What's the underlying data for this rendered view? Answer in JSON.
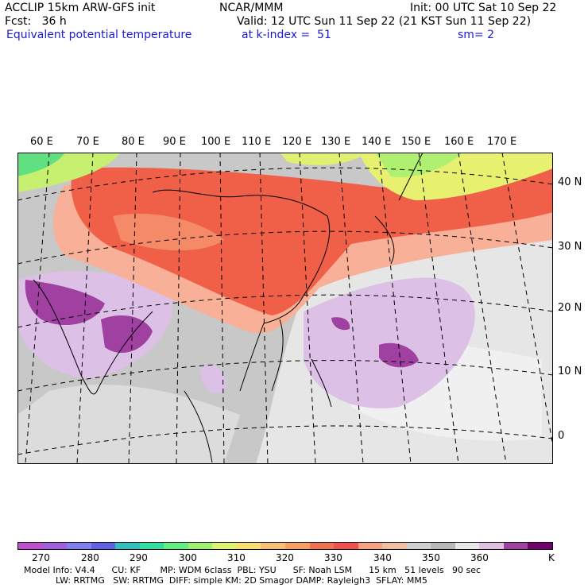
{
  "header": {
    "line1_left": "ACCLIP 15km ARW-GFS init",
    "line1_mid": "NCAR/MMM",
    "line1_right": "Init: 00 UTC Sat 10 Sep 22",
    "line2_left": "Fcst:   36 h",
    "line2_right": "Valid: 12 UTC Sun 11 Sep 22 (21 KST Sun 11 Sep 22)",
    "line3_left": "Equivalent potential temperature",
    "line3_mid": "at k-index =  51",
    "line3_right": "sm= 2"
  },
  "map": {
    "lon_labels": [
      "60 E",
      "70 E",
      "80 E",
      "90 E",
      "100 E",
      "110 E",
      "120 E",
      "130 E",
      "140 E",
      "150 E",
      "160 E",
      "170 E"
    ],
    "lat_labels": [
      "40 N",
      "30 N",
      "20 N",
      "10 N",
      "0"
    ]
  },
  "legend": {
    "colors": [
      "#c050d0",
      "#a060e0",
      "#8080f0",
      "#6060e8",
      "#30c0c0",
      "#30e0a0",
      "#60f080",
      "#a0f070",
      "#e0f070",
      "#f8e070",
      "#f8c070",
      "#f8a060",
      "#f07050",
      "#f05050",
      "#f8a080",
      "#f0c0a0",
      "#d0d0d0",
      "#b8b8b8",
      "#e8e8e8",
      "#e0c0e0",
      "#a040a0",
      "#700070"
    ],
    "ticks": [
      "270",
      "280",
      "290",
      "300",
      "310",
      "320",
      "330",
      "340",
      "350",
      "360",
      "K"
    ]
  },
  "footer": {
    "line1": "Model Info: V4.4      CU: KF       MP: WDM 6class  PBL: YSU      SF: Noah LSM      15 km   51 levels   90 sec",
    "line2": "LW: RRTMG   SW: RRTMG  DIFF: simple KM: 2D Smagor DAMP: Rayleigh3  SFLAY: MM5"
  }
}
